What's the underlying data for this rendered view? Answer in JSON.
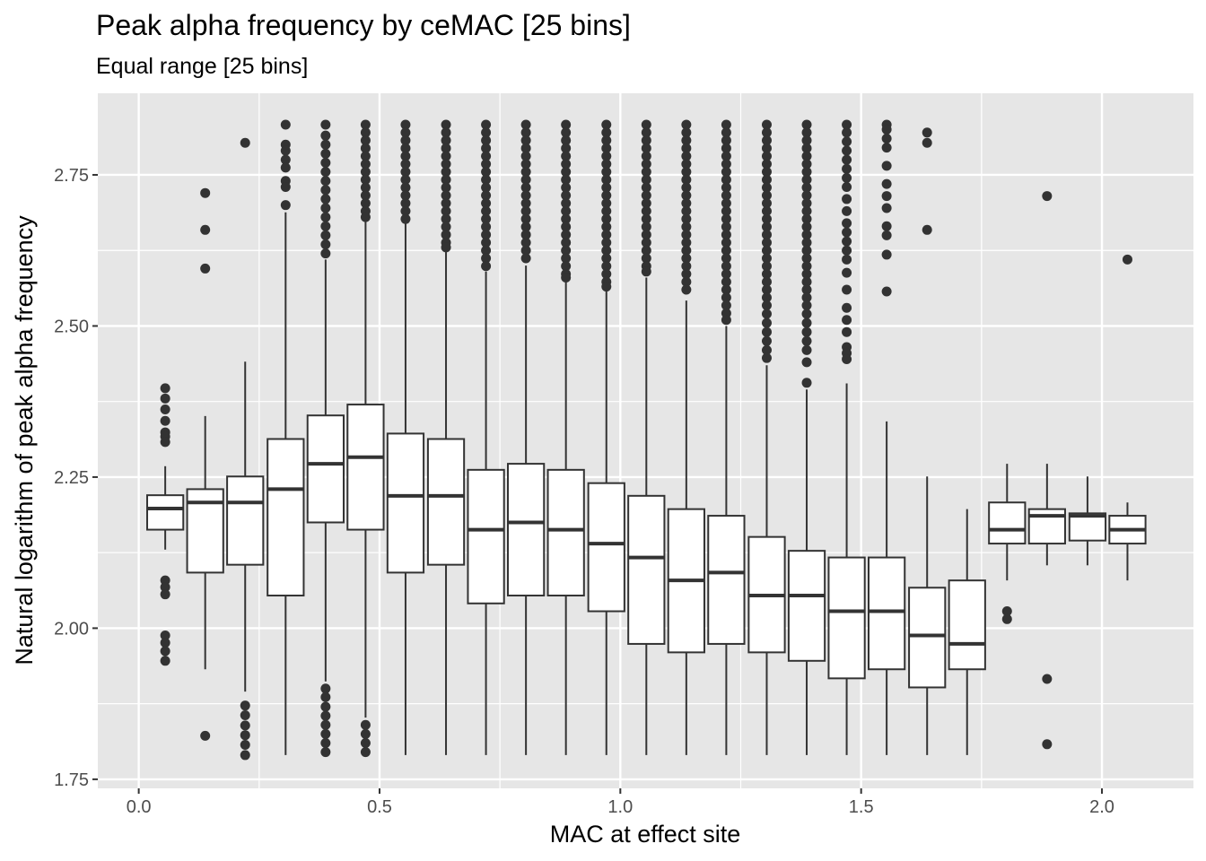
{
  "chart_data": {
    "type": "boxplot",
    "title": "Peak alpha frequency by ceMAC [25 bins]",
    "subtitle": "Equal range [25 bins]",
    "xlabel": "MAC at effect site",
    "ylabel": "Natural logarithm of peak alpha frequency",
    "xlim": [
      -0.085,
      2.19
    ],
    "ylim": [
      1.735,
      2.885
    ],
    "x_ticks": [
      {
        "v": 0.0,
        "label": "0.0"
      },
      {
        "v": 0.5,
        "label": "0.5"
      },
      {
        "v": 1.0,
        "label": "1.0"
      },
      {
        "v": 1.5,
        "label": "1.5"
      },
      {
        "v": 2.0,
        "label": "2.0"
      }
    ],
    "y_ticks": [
      {
        "v": 1.75,
        "label": "1.75"
      },
      {
        "v": 2.0,
        "label": "2.00"
      },
      {
        "v": 2.25,
        "label": "2.25"
      },
      {
        "v": 2.5,
        "label": "2.50"
      },
      {
        "v": 2.75,
        "label": "2.75"
      }
    ],
    "grid": true,
    "box_width": 0.075,
    "colors": {
      "panel": "#e6e6e6",
      "grid": "#ffffff",
      "box_fill": "#ffffff",
      "box_line": "#333333",
      "outlier": "#333333",
      "tick": "#333333"
    },
    "boxes": [
      {
        "x": 0.055,
        "lower": 2.13,
        "q1": 2.163,
        "median": 2.198,
        "q3": 2.22,
        "upper": 2.268,
        "outliers": [
          2.397,
          2.38,
          2.362,
          2.343,
          2.324,
          2.317,
          2.308,
          2.079,
          2.068,
          2.056,
          1.988,
          1.976,
          1.962,
          1.946
        ]
      },
      {
        "x": 0.138,
        "lower": 1.932,
        "q1": 2.092,
        "median": 2.208,
        "q3": 2.23,
        "upper": 2.351,
        "outliers": [
          2.72,
          2.659,
          2.595,
          1.822
        ]
      },
      {
        "x": 0.221,
        "lower": 1.895,
        "q1": 2.105,
        "median": 2.208,
        "q3": 2.251,
        "upper": 2.441,
        "outliers": [
          2.803,
          1.872,
          1.856,
          1.839,
          1.823,
          1.807,
          1.79
        ]
      },
      {
        "x": 0.305,
        "lower": 1.79,
        "q1": 2.054,
        "median": 2.23,
        "q3": 2.313,
        "upper": 2.688,
        "outliers": [
          2.833,
          2.8,
          2.79,
          2.775,
          2.762,
          2.74,
          2.73,
          2.7
        ]
      },
      {
        "x": 0.388,
        "lower": 1.912,
        "q1": 2.175,
        "median": 2.272,
        "q3": 2.352,
        "upper": 2.61,
        "outliers": [
          2.833,
          2.815,
          2.8,
          2.785,
          2.77,
          2.755,
          2.74,
          2.725,
          2.71,
          2.695,
          2.68,
          2.665,
          2.65,
          2.635,
          2.62,
          1.9,
          1.886,
          1.87,
          1.855,
          1.84,
          1.825,
          1.81,
          1.795
        ]
      },
      {
        "x": 0.471,
        "lower": 1.852,
        "q1": 2.163,
        "median": 2.283,
        "q3": 2.37,
        "upper": 2.672,
        "outliers": [
          2.833,
          2.82,
          2.807,
          2.794,
          2.781,
          2.768,
          2.755,
          2.742,
          2.729,
          2.716,
          2.703,
          2.69,
          2.68,
          1.84,
          1.825,
          1.81,
          1.795
        ]
      },
      {
        "x": 0.554,
        "lower": 1.79,
        "q1": 2.092,
        "median": 2.219,
        "q3": 2.322,
        "upper": 2.67,
        "outliers": [
          2.833,
          2.82,
          2.807,
          2.794,
          2.781,
          2.768,
          2.755,
          2.742,
          2.729,
          2.716,
          2.703,
          2.69,
          2.677
        ]
      },
      {
        "x": 0.638,
        "lower": 1.79,
        "q1": 2.105,
        "median": 2.219,
        "q3": 2.313,
        "upper": 2.625,
        "outliers": [
          2.833,
          2.82,
          2.807,
          2.794,
          2.781,
          2.768,
          2.755,
          2.742,
          2.729,
          2.716,
          2.703,
          2.69,
          2.677,
          2.664,
          2.651,
          2.638,
          2.63
        ]
      },
      {
        "x": 0.721,
        "lower": 1.79,
        "q1": 2.041,
        "median": 2.163,
        "q3": 2.262,
        "upper": 2.59,
        "outliers": [
          2.833,
          2.82,
          2.807,
          2.794,
          2.781,
          2.768,
          2.755,
          2.742,
          2.729,
          2.716,
          2.703,
          2.69,
          2.677,
          2.664,
          2.651,
          2.638,
          2.625,
          2.612,
          2.599
        ]
      },
      {
        "x": 0.804,
        "lower": 1.79,
        "q1": 2.054,
        "median": 2.175,
        "q3": 2.272,
        "upper": 2.6,
        "outliers": [
          2.833,
          2.82,
          2.807,
          2.794,
          2.781,
          2.768,
          2.755,
          2.742,
          2.729,
          2.716,
          2.703,
          2.69,
          2.677,
          2.664,
          2.651,
          2.638,
          2.625,
          2.612
        ]
      },
      {
        "x": 0.887,
        "lower": 1.79,
        "q1": 2.054,
        "median": 2.163,
        "q3": 2.262,
        "upper": 2.575,
        "outliers": [
          2.833,
          2.82,
          2.807,
          2.794,
          2.781,
          2.768,
          2.755,
          2.742,
          2.729,
          2.716,
          2.703,
          2.69,
          2.677,
          2.664,
          2.651,
          2.638,
          2.625,
          2.612,
          2.599,
          2.586,
          2.58
        ]
      },
      {
        "x": 0.971,
        "lower": 1.79,
        "q1": 2.028,
        "median": 2.14,
        "q3": 2.24,
        "upper": 2.56,
        "outliers": [
          2.833,
          2.82,
          2.807,
          2.794,
          2.781,
          2.768,
          2.755,
          2.742,
          2.729,
          2.716,
          2.703,
          2.69,
          2.677,
          2.664,
          2.651,
          2.638,
          2.625,
          2.612,
          2.599,
          2.586,
          2.573,
          2.565
        ]
      },
      {
        "x": 1.054,
        "lower": 1.79,
        "q1": 1.974,
        "median": 2.117,
        "q3": 2.219,
        "upper": 2.58,
        "outliers": [
          2.833,
          2.82,
          2.807,
          2.794,
          2.781,
          2.768,
          2.755,
          2.742,
          2.729,
          2.716,
          2.703,
          2.69,
          2.677,
          2.664,
          2.651,
          2.638,
          2.625,
          2.612,
          2.599,
          2.59
        ]
      },
      {
        "x": 1.137,
        "lower": 1.79,
        "q1": 1.96,
        "median": 2.079,
        "q3": 2.197,
        "upper": 2.542,
        "outliers": [
          2.833,
          2.82,
          2.807,
          2.794,
          2.781,
          2.768,
          2.755,
          2.742,
          2.729,
          2.716,
          2.703,
          2.69,
          2.677,
          2.664,
          2.651,
          2.638,
          2.625,
          2.612,
          2.599,
          2.586,
          2.573,
          2.56
        ]
      },
      {
        "x": 1.22,
        "lower": 1.79,
        "q1": 1.974,
        "median": 2.092,
        "q3": 2.186,
        "upper": 2.5,
        "outliers": [
          2.833,
          2.82,
          2.807,
          2.794,
          2.781,
          2.768,
          2.755,
          2.742,
          2.729,
          2.716,
          2.703,
          2.69,
          2.677,
          2.664,
          2.651,
          2.638,
          2.625,
          2.612,
          2.599,
          2.586,
          2.573,
          2.56,
          2.547,
          2.534,
          2.521,
          2.51
        ]
      },
      {
        "x": 1.304,
        "lower": 1.79,
        "q1": 1.96,
        "median": 2.054,
        "q3": 2.151,
        "upper": 2.435,
        "outliers": [
          2.833,
          2.82,
          2.807,
          2.794,
          2.781,
          2.768,
          2.755,
          2.742,
          2.729,
          2.716,
          2.703,
          2.69,
          2.677,
          2.664,
          2.651,
          2.638,
          2.625,
          2.612,
          2.599,
          2.586,
          2.573,
          2.56,
          2.547,
          2.534,
          2.52,
          2.505,
          2.49,
          2.475,
          2.46,
          2.447
        ]
      },
      {
        "x": 1.387,
        "lower": 1.79,
        "q1": 1.946,
        "median": 2.054,
        "q3": 2.128,
        "upper": 2.395,
        "outliers": [
          2.833,
          2.82,
          2.807,
          2.794,
          2.781,
          2.768,
          2.755,
          2.742,
          2.729,
          2.716,
          2.703,
          2.69,
          2.677,
          2.664,
          2.651,
          2.638,
          2.625,
          2.612,
          2.599,
          2.586,
          2.573,
          2.56,
          2.547,
          2.534,
          2.52,
          2.505,
          2.49,
          2.475,
          2.46,
          2.44,
          2.406
        ]
      },
      {
        "x": 1.47,
        "lower": 1.79,
        "q1": 1.917,
        "median": 2.028,
        "q3": 2.117,
        "upper": 2.405,
        "outliers": [
          2.833,
          2.82,
          2.805,
          2.79,
          2.775,
          2.76,
          2.745,
          2.73,
          2.71,
          2.69,
          2.67,
          2.655,
          2.64,
          2.625,
          2.61,
          2.588,
          2.56,
          2.53,
          2.51,
          2.49,
          2.465,
          2.455,
          2.445
        ]
      },
      {
        "x": 1.553,
        "lower": 1.79,
        "q1": 1.932,
        "median": 2.028,
        "q3": 2.117,
        "upper": 2.342,
        "outliers": [
          2.833,
          2.825,
          2.81,
          2.795,
          2.765,
          2.735,
          2.715,
          2.695,
          2.665,
          2.65,
          2.618,
          2.557
        ]
      },
      {
        "x": 1.637,
        "lower": 1.79,
        "q1": 1.902,
        "median": 1.988,
        "q3": 2.067,
        "upper": 2.251,
        "outliers": [
          2.82,
          2.803,
          2.659
        ]
      },
      {
        "x": 1.72,
        "lower": 1.79,
        "q1": 1.932,
        "median": 1.974,
        "q3": 2.079,
        "upper": 2.197,
        "outliers": []
      },
      {
        "x": 1.803,
        "lower": 2.079,
        "q1": 2.14,
        "median": 2.163,
        "q3": 2.208,
        "upper": 2.272,
        "outliers": [
          2.028,
          2.015
        ]
      },
      {
        "x": 1.886,
        "lower": 2.104,
        "q1": 2.14,
        "median": 2.186,
        "q3": 2.197,
        "upper": 2.272,
        "outliers": [
          2.715,
          1.916,
          1.808
        ]
      },
      {
        "x": 1.97,
        "lower": 2.104,
        "q1": 2.145,
        "median": 2.186,
        "q3": 2.19,
        "upper": 2.251,
        "outliers": []
      },
      {
        "x": 2.053,
        "lower": 2.079,
        "q1": 2.14,
        "median": 2.163,
        "q3": 2.186,
        "upper": 2.208,
        "outliers": [
          2.61
        ]
      }
    ]
  }
}
